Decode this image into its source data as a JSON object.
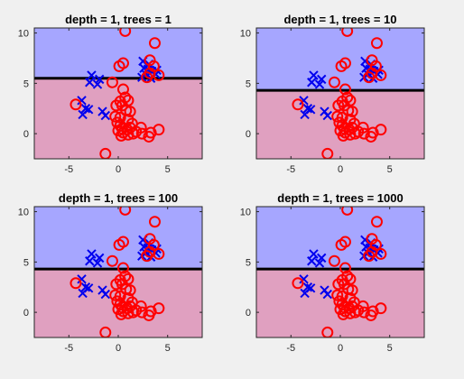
{
  "figure": {
    "background": "#f0f0f0"
  },
  "colors": {
    "region_class_1": "#a6a6ff",
    "region_class_2": "#e0a0c0",
    "marker_x": "#0000ee",
    "marker_o": "#ff0000",
    "boundary": "#000000"
  },
  "chart_data": [
    {
      "type": "scatter",
      "title": "depth = 1, trees = 1",
      "xlabel": "",
      "ylabel": "",
      "xlim": [
        -8.5,
        8.5
      ],
      "ylim": [
        -2.5,
        10.5
      ],
      "xticks": [
        -5,
        0,
        5
      ],
      "xtick_labels": [
        "-5",
        "0",
        "5"
      ],
      "yticks": [
        0,
        5,
        10
      ],
      "ytick_labels": [
        "0",
        "5",
        "10"
      ],
      "grid": false,
      "decision_boundary_y": 5.5
    },
    {
      "type": "scatter",
      "title": "depth = 1, trees = 10",
      "xlabel": "",
      "ylabel": "",
      "xlim": [
        -8.5,
        8.5
      ],
      "ylim": [
        -2.5,
        10.5
      ],
      "xticks": [
        -5,
        0,
        5
      ],
      "xtick_labels": [
        "-5",
        "0",
        "5"
      ],
      "yticks": [
        0,
        5,
        10
      ],
      "ytick_labels": [
        "0",
        "5",
        "10"
      ],
      "grid": false,
      "decision_boundary_y": 4.3
    },
    {
      "type": "scatter",
      "title": "depth = 1, trees = 100",
      "xlabel": "",
      "ylabel": "",
      "xlim": [
        -8.5,
        8.5
      ],
      "ylim": [
        -2.5,
        10.5
      ],
      "xticks": [
        -5,
        0,
        5
      ],
      "xtick_labels": [
        "-5",
        "0",
        "5"
      ],
      "yticks": [
        0,
        5,
        10
      ],
      "ytick_labels": [
        "0",
        "5",
        "10"
      ],
      "grid": false,
      "decision_boundary_y": 4.3
    },
    {
      "type": "scatter",
      "title": "depth = 1, trees = 1000",
      "xlabel": "",
      "ylabel": "",
      "xlim": [
        -8.5,
        8.5
      ],
      "ylim": [
        -2.5,
        10.5
      ],
      "xticks": [
        -5,
        0,
        5
      ],
      "xtick_labels": [
        "-5",
        "0",
        "5"
      ],
      "yticks": [
        0,
        5,
        10
      ],
      "ytick_labels": [
        "0",
        "5",
        "10"
      ],
      "grid": false,
      "decision_boundary_y": 4.3
    }
  ],
  "points": {
    "x_markers": [
      [
        -2.7,
        5.8
      ],
      [
        -2.9,
        5.1
      ],
      [
        -2.1,
        4.9
      ],
      [
        -1.9,
        5.4
      ],
      [
        -3.7,
        3.3
      ],
      [
        -3.3,
        2.5
      ],
      [
        -3.6,
        1.9
      ],
      [
        -3.0,
        2.4
      ],
      [
        -1.6,
        2.2
      ],
      [
        -1.3,
        1.8
      ],
      [
        2.5,
        7.2
      ],
      [
        2.6,
        6.5
      ],
      [
        3.0,
        6.4
      ],
      [
        3.4,
        6.2
      ],
      [
        2.8,
        5.9
      ],
      [
        3.3,
        5.5
      ],
      [
        3.8,
        5.9
      ],
      [
        2.4,
        5.6
      ],
      [
        3.1,
        6.9
      ],
      [
        3.9,
        6.3
      ]
    ],
    "o_markers": [
      [
        0.7,
        10.2
      ],
      [
        3.7,
        9.0
      ],
      [
        0.1,
        6.7
      ],
      [
        0.5,
        7.0
      ],
      [
        -0.6,
        5.1
      ],
      [
        3.2,
        7.3
      ],
      [
        3.6,
        6.7
      ],
      [
        3.2,
        6.0
      ],
      [
        4.1,
        5.8
      ],
      [
        2.9,
        5.6
      ],
      [
        -4.3,
        2.9
      ],
      [
        0.5,
        4.4
      ],
      [
        -0.2,
        2.8
      ],
      [
        0.2,
        3.2
      ],
      [
        0.7,
        3.6
      ],
      [
        1.0,
        3.3
      ],
      [
        0.4,
        2.8
      ],
      [
        -0.3,
        1.7
      ],
      [
        0.8,
        2.3
      ],
      [
        1.2,
        2.2
      ],
      [
        0.2,
        1.6
      ],
      [
        -0.1,
        1.1
      ],
      [
        1.0,
        1.4
      ],
      [
        1.4,
        1.0
      ],
      [
        0.2,
        0.8
      ],
      [
        0.4,
        0.5
      ],
      [
        0.9,
        0.4
      ],
      [
        0.0,
        0.3
      ],
      [
        0.5,
        0.1
      ],
      [
        1.2,
        0.6
      ],
      [
        1.8,
        0.2
      ],
      [
        0.3,
        -0.2
      ],
      [
        1.0,
        -0.1
      ],
      [
        2.3,
        0.6
      ],
      [
        2.4,
        0.0
      ],
      [
        3.3,
        0.1
      ],
      [
        3.1,
        -0.3
      ],
      [
        4.1,
        0.4
      ],
      [
        -1.3,
        -2.0
      ],
      [
        1.5,
        0.0
      ]
    ]
  }
}
